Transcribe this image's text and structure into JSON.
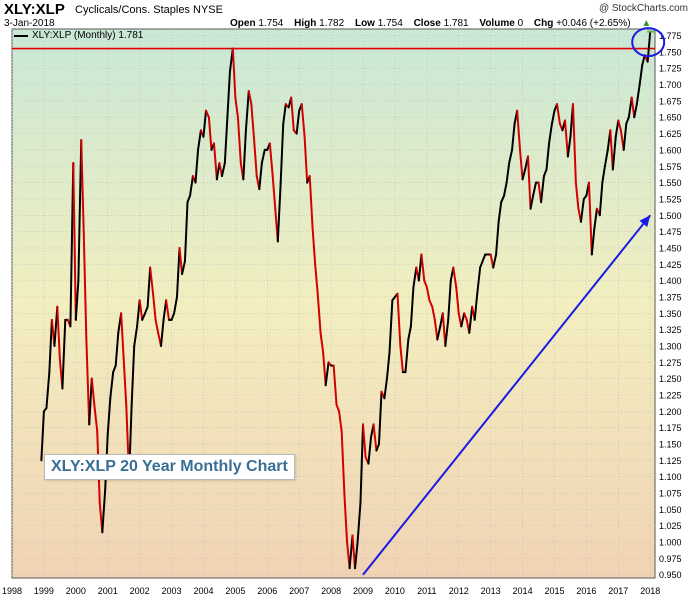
{
  "header": {
    "symbol": "XLY:XLP",
    "name": "Cyclicals/Cons. Staples",
    "exchange": "NYSE",
    "date": "3-Jan-2018",
    "credit": "@ StockCharts.com",
    "open_label": "Open",
    "open": "1.754",
    "high_label": "High",
    "high": "1.782",
    "low_label": "Low",
    "low": "1.754",
    "close_label": "Close",
    "close": "1.781",
    "volume_label": "Volume",
    "volume": "0",
    "chg_label": "Chg",
    "chg": "+0.046 (+2.65%)",
    "up_icon": "triangle-up-icon"
  },
  "legend": {
    "text": "XLY:XLP (Monthly) 1.781"
  },
  "annotation": {
    "text": "XLY:XLP 20 Year Monthly Chart"
  },
  "colors": {
    "up": "#000000",
    "down": "#d40000",
    "resistance": "#e00000",
    "trendline": "#1a1ae6",
    "circle": "#1a1ae6",
    "bg_top": "#c9e8d6",
    "bg_mid": "#f2eebf",
    "bg_bottom": "#f1d3b4",
    "last_marker": "#6ab04c"
  },
  "chart_data": {
    "type": "line",
    "title": "XLY:XLP",
    "x_ticks": [
      "1998",
      "1999",
      "2000",
      "2001",
      "2002",
      "2003",
      "2004",
      "2005",
      "2006",
      "2007",
      "2008",
      "2009",
      "2010",
      "2011",
      "2012",
      "2013",
      "2014",
      "2015",
      "2016",
      "2017",
      "2018"
    ],
    "y_ticks": [
      "0.950",
      "0.975",
      "1.000",
      "1.025",
      "1.050",
      "1.075",
      "1.100",
      "1.125",
      "1.150",
      "1.175",
      "1.200",
      "1.225",
      "1.250",
      "1.275",
      "1.300",
      "1.325",
      "1.350",
      "1.375",
      "1.400",
      "1.425",
      "1.450",
      "1.475",
      "1.500",
      "1.525",
      "1.550",
      "1.575",
      "1.600",
      "1.625",
      "1.650",
      "1.675",
      "1.700",
      "1.725",
      "1.750",
      "1.775"
    ],
    "ylim": [
      0.945,
      1.785
    ],
    "xlim": [
      1998.0,
      2018.15
    ],
    "grid": true,
    "series": [
      {
        "points": [
          [
            1998.92,
            1.125
          ],
          [
            1999.0,
            1.2
          ],
          [
            1999.08,
            1.205
          ],
          [
            1999.17,
            1.26
          ],
          [
            1999.25,
            1.34
          ],
          [
            1999.33,
            1.3
          ],
          [
            1999.42,
            1.36
          ],
          [
            1999.5,
            1.28
          ],
          [
            1999.58,
            1.235
          ],
          [
            1999.67,
            1.34
          ],
          [
            1999.75,
            1.34
          ],
          [
            1999.83,
            1.33
          ],
          [
            1999.92,
            1.58
          ],
          [
            2000.0,
            1.34
          ],
          [
            2000.08,
            1.4
          ],
          [
            2000.17,
            1.615
          ],
          [
            2000.25,
            1.47
          ],
          [
            2000.33,
            1.31
          ],
          [
            2000.42,
            1.18
          ],
          [
            2000.5,
            1.25
          ],
          [
            2000.58,
            1.21
          ],
          [
            2000.67,
            1.17
          ],
          [
            2000.75,
            1.06
          ],
          [
            2000.83,
            1.015
          ],
          [
            2000.92,
            1.08
          ],
          [
            2001.0,
            1.165
          ],
          [
            2001.08,
            1.22
          ],
          [
            2001.17,
            1.26
          ],
          [
            2001.25,
            1.27
          ],
          [
            2001.33,
            1.32
          ],
          [
            2001.42,
            1.35
          ],
          [
            2001.5,
            1.28
          ],
          [
            2001.58,
            1.21
          ],
          [
            2001.67,
            1.1
          ],
          [
            2001.75,
            1.21
          ],
          [
            2001.83,
            1.3
          ],
          [
            2001.92,
            1.33
          ],
          [
            2002.0,
            1.37
          ],
          [
            2002.08,
            1.34
          ],
          [
            2002.17,
            1.35
          ],
          [
            2002.25,
            1.36
          ],
          [
            2002.33,
            1.42
          ],
          [
            2002.42,
            1.38
          ],
          [
            2002.5,
            1.34
          ],
          [
            2002.58,
            1.32
          ],
          [
            2002.67,
            1.3
          ],
          [
            2002.75,
            1.34
          ],
          [
            2002.83,
            1.37
          ],
          [
            2002.92,
            1.34
          ],
          [
            2003.0,
            1.34
          ],
          [
            2003.08,
            1.35
          ],
          [
            2003.17,
            1.375
          ],
          [
            2003.25,
            1.45
          ],
          [
            2003.33,
            1.41
          ],
          [
            2003.42,
            1.43
          ],
          [
            2003.5,
            1.52
          ],
          [
            2003.58,
            1.53
          ],
          [
            2003.67,
            1.56
          ],
          [
            2003.75,
            1.55
          ],
          [
            2003.83,
            1.6
          ],
          [
            2003.92,
            1.63
          ],
          [
            2004.0,
            1.62
          ],
          [
            2004.08,
            1.66
          ],
          [
            2004.17,
            1.65
          ],
          [
            2004.25,
            1.6
          ],
          [
            2004.33,
            1.61
          ],
          [
            2004.42,
            1.555
          ],
          [
            2004.5,
            1.58
          ],
          [
            2004.58,
            1.56
          ],
          [
            2004.67,
            1.58
          ],
          [
            2004.75,
            1.65
          ],
          [
            2004.83,
            1.72
          ],
          [
            2004.92,
            1.755
          ],
          [
            2005.0,
            1.68
          ],
          [
            2005.08,
            1.65
          ],
          [
            2005.17,
            1.58
          ],
          [
            2005.25,
            1.555
          ],
          [
            2005.33,
            1.63
          ],
          [
            2005.42,
            1.69
          ],
          [
            2005.5,
            1.67
          ],
          [
            2005.58,
            1.62
          ],
          [
            2005.67,
            1.56
          ],
          [
            2005.75,
            1.54
          ],
          [
            2005.83,
            1.58
          ],
          [
            2005.92,
            1.6
          ],
          [
            2006.0,
            1.6
          ],
          [
            2006.08,
            1.61
          ],
          [
            2006.17,
            1.56
          ],
          [
            2006.25,
            1.51
          ],
          [
            2006.33,
            1.46
          ],
          [
            2006.42,
            1.55
          ],
          [
            2006.5,
            1.64
          ],
          [
            2006.58,
            1.67
          ],
          [
            2006.67,
            1.665
          ],
          [
            2006.75,
            1.68
          ],
          [
            2006.83,
            1.63
          ],
          [
            2006.92,
            1.625
          ],
          [
            2007.0,
            1.66
          ],
          [
            2007.08,
            1.67
          ],
          [
            2007.17,
            1.62
          ],
          [
            2007.25,
            1.55
          ],
          [
            2007.33,
            1.56
          ],
          [
            2007.42,
            1.48
          ],
          [
            2007.5,
            1.425
          ],
          [
            2007.58,
            1.38
          ],
          [
            2007.67,
            1.32
          ],
          [
            2007.75,
            1.29
          ],
          [
            2007.83,
            1.24
          ],
          [
            2007.92,
            1.275
          ],
          [
            2008.0,
            1.27
          ],
          [
            2008.08,
            1.27
          ],
          [
            2008.17,
            1.21
          ],
          [
            2008.25,
            1.2
          ],
          [
            2008.33,
            1.17
          ],
          [
            2008.42,
            1.07
          ],
          [
            2008.5,
            1.0
          ],
          [
            2008.58,
            0.96
          ],
          [
            2008.67,
            1.01
          ],
          [
            2008.75,
            0.96
          ],
          [
            2008.83,
            1.0
          ],
          [
            2008.92,
            1.06
          ],
          [
            2009.0,
            1.18
          ],
          [
            2009.08,
            1.13
          ],
          [
            2009.17,
            1.12
          ],
          [
            2009.25,
            1.16
          ],
          [
            2009.33,
            1.18
          ],
          [
            2009.42,
            1.14
          ],
          [
            2009.5,
            1.15
          ],
          [
            2009.58,
            1.23
          ],
          [
            2009.67,
            1.22
          ],
          [
            2009.75,
            1.25
          ],
          [
            2009.83,
            1.29
          ],
          [
            2009.92,
            1.37
          ],
          [
            2010.0,
            1.375
          ],
          [
            2010.08,
            1.38
          ],
          [
            2010.17,
            1.3
          ],
          [
            2010.25,
            1.26
          ],
          [
            2010.33,
            1.26
          ],
          [
            2010.42,
            1.31
          ],
          [
            2010.5,
            1.33
          ],
          [
            2010.58,
            1.39
          ],
          [
            2010.67,
            1.42
          ],
          [
            2010.75,
            1.4
          ],
          [
            2010.83,
            1.44
          ],
          [
            2010.92,
            1.4
          ],
          [
            2011.0,
            1.39
          ],
          [
            2011.08,
            1.37
          ],
          [
            2011.17,
            1.36
          ],
          [
            2011.25,
            1.34
          ],
          [
            2011.33,
            1.31
          ],
          [
            2011.42,
            1.33
          ],
          [
            2011.5,
            1.35
          ],
          [
            2011.58,
            1.3
          ],
          [
            2011.67,
            1.34
          ],
          [
            2011.75,
            1.4
          ],
          [
            2011.83,
            1.42
          ],
          [
            2011.92,
            1.39
          ],
          [
            2012.0,
            1.35
          ],
          [
            2012.08,
            1.33
          ],
          [
            2012.17,
            1.35
          ],
          [
            2012.25,
            1.34
          ],
          [
            2012.33,
            1.32
          ],
          [
            2012.42,
            1.36
          ],
          [
            2012.5,
            1.34
          ],
          [
            2012.58,
            1.38
          ],
          [
            2012.67,
            1.42
          ],
          [
            2012.75,
            1.43
          ],
          [
            2012.83,
            1.44
          ],
          [
            2012.92,
            1.44
          ],
          [
            2013.0,
            1.44
          ],
          [
            2013.08,
            1.42
          ],
          [
            2013.17,
            1.44
          ],
          [
            2013.25,
            1.49
          ],
          [
            2013.33,
            1.52
          ],
          [
            2013.42,
            1.53
          ],
          [
            2013.5,
            1.55
          ],
          [
            2013.58,
            1.58
          ],
          [
            2013.67,
            1.6
          ],
          [
            2013.75,
            1.64
          ],
          [
            2013.83,
            1.66
          ],
          [
            2013.92,
            1.6
          ],
          [
            2014.0,
            1.555
          ],
          [
            2014.08,
            1.57
          ],
          [
            2014.17,
            1.59
          ],
          [
            2014.25,
            1.51
          ],
          [
            2014.33,
            1.53
          ],
          [
            2014.42,
            1.55
          ],
          [
            2014.5,
            1.55
          ],
          [
            2014.58,
            1.52
          ],
          [
            2014.67,
            1.56
          ],
          [
            2014.75,
            1.57
          ],
          [
            2014.83,
            1.61
          ],
          [
            2014.92,
            1.64
          ],
          [
            2015.0,
            1.66
          ],
          [
            2015.08,
            1.67
          ],
          [
            2015.17,
            1.64
          ],
          [
            2015.25,
            1.63
          ],
          [
            2015.33,
            1.645
          ],
          [
            2015.42,
            1.59
          ],
          [
            2015.5,
            1.62
          ],
          [
            2015.58,
            1.67
          ],
          [
            2015.67,
            1.55
          ],
          [
            2015.75,
            1.51
          ],
          [
            2015.83,
            1.49
          ],
          [
            2015.92,
            1.525
          ],
          [
            2016.0,
            1.53
          ],
          [
            2016.08,
            1.55
          ],
          [
            2016.17,
            1.44
          ],
          [
            2016.25,
            1.48
          ],
          [
            2016.33,
            1.51
          ],
          [
            2016.42,
            1.5
          ],
          [
            2016.5,
            1.55
          ],
          [
            2016.58,
            1.575
          ],
          [
            2016.67,
            1.6
          ],
          [
            2016.75,
            1.63
          ],
          [
            2016.83,
            1.57
          ],
          [
            2016.92,
            1.62
          ],
          [
            2017.0,
            1.645
          ],
          [
            2017.08,
            1.63
          ],
          [
            2017.17,
            1.6
          ],
          [
            2017.25,
            1.64
          ],
          [
            2017.33,
            1.65
          ],
          [
            2017.42,
            1.68
          ],
          [
            2017.5,
            1.65
          ],
          [
            2017.58,
            1.67
          ],
          [
            2017.67,
            1.7
          ],
          [
            2017.75,
            1.73
          ],
          [
            2017.83,
            1.745
          ],
          [
            2017.92,
            1.735
          ],
          [
            2018.0,
            1.781
          ]
        ]
      }
    ],
    "resistance_level": 1.755,
    "trendline": {
      "from": [
        2009.0,
        0.95
      ],
      "to": [
        2018.0,
        1.5
      ]
    },
    "circle_at": [
      2018.0,
      1.765
    ]
  }
}
